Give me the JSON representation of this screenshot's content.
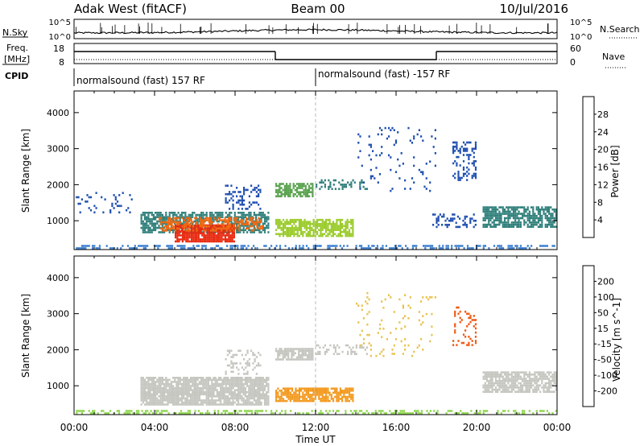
{
  "header": {
    "title_left": "Adak West (fitACF)",
    "title_center": "Beam 00",
    "title_right": "10/Jul/2016"
  },
  "noise_panel": {
    "left_label": "N.Sky",
    "right_label": "N.Search",
    "tick_top": "10^5",
    "tick_bottom": "10^0",
    "right_tick_top": "10^5",
    "right_tick_bottom": "10^0"
  },
  "freq_panel": {
    "left_label_1": "Freq.",
    "left_label_2": "[MHz]",
    "right_label": "Nave",
    "left_ticks": [
      "18",
      "8"
    ],
    "right_ticks": [
      "60",
      "0"
    ],
    "freq_segments": [
      {
        "from": 0.0,
        "to": 10.0,
        "level": 0.6
      },
      {
        "from": 10.0,
        "to": 18.0,
        "level": 0.2
      },
      {
        "from": 18.0,
        "to": 24.0,
        "level": 0.6
      }
    ]
  },
  "cpid_panel": {
    "label": "CPID",
    "segments": [
      {
        "start_hour": 0,
        "label": "normalsound (fast) 157 RF"
      },
      {
        "start_hour": 12,
        "label": "normalsound (fast) -157 RF"
      }
    ]
  },
  "chart_data": [
    {
      "type": "heatmap",
      "name": "power-panel",
      "ylabel": "Slant Range [km]",
      "xlim": [
        0,
        24
      ],
      "ylim": [
        200,
        4600
      ],
      "yticks": [
        1000,
        2000,
        3000,
        4000
      ],
      "colorbar": {
        "label": "Power [dB]",
        "ticks": [
          "4",
          "8",
          "12",
          "16",
          "20",
          "24",
          "28"
        ],
        "colors": [
          "#0a1fd6",
          "#1f4fb0",
          "#2f7f7a",
          "#5aa24f",
          "#9ccc2f",
          "#e7d21f",
          "#f0a41a",
          "#ee6a14",
          "#e82a10",
          "#e00000"
        ]
      },
      "regions": [
        {
          "name": "ground-scatter-bg",
          "t0": 0.0,
          "t1": 24.0,
          "r0": 200,
          "r1": 330,
          "color": "#3d7fd0",
          "density": 0.45
        },
        {
          "name": "dawn-echo-low",
          "t0": 3.3,
          "t1": 9.7,
          "r0": 650,
          "r1": 1250,
          "color": "#2f7f7a",
          "density": 0.7
        },
        {
          "name": "dawn-echo-core",
          "t0": 5.0,
          "t1": 8.0,
          "r0": 400,
          "r1": 900,
          "color": "#e82a10",
          "density": 0.9
        },
        {
          "name": "dawn-echo-mid",
          "t0": 4.2,
          "t1": 9.4,
          "r0": 700,
          "r1": 1100,
          "color": "#ee6a14",
          "density": 0.55
        },
        {
          "name": "dawn-echo-upper",
          "t0": 7.5,
          "t1": 9.3,
          "r0": 1300,
          "r1": 2000,
          "color": "#1f4fb0",
          "density": 0.35
        },
        {
          "name": "early-weak",
          "t0": 0.0,
          "t1": 3.0,
          "r0": 1200,
          "r1": 1800,
          "color": "#1f4fb0",
          "density": 0.12
        },
        {
          "name": "midday-upper",
          "t0": 10.0,
          "t1": 11.9,
          "r0": 1650,
          "r1": 2050,
          "color": "#5aa24f",
          "density": 0.75
        },
        {
          "name": "midday-lower",
          "t0": 10.0,
          "t1": 13.9,
          "r0": 550,
          "r1": 1050,
          "color": "#9ccc2f",
          "density": 0.75
        },
        {
          "name": "noon-tail",
          "t0": 12.0,
          "t1": 14.6,
          "r0": 1850,
          "r1": 2150,
          "color": "#2f7f7a",
          "density": 0.35
        },
        {
          "name": "afternoon-scatter",
          "t0": 14.0,
          "t1": 18.0,
          "r0": 1800,
          "r1": 3600,
          "color": "#1f4fb0",
          "density": 0.05
        },
        {
          "name": "evening-streak",
          "t0": 18.8,
          "t1": 20.0,
          "r0": 2100,
          "r1": 3200,
          "color": "#1f4fb0",
          "density": 0.3
        },
        {
          "name": "evening-low",
          "t0": 17.8,
          "t1": 20.0,
          "r0": 800,
          "r1": 1200,
          "color": "#1f4fb0",
          "density": 0.3
        },
        {
          "name": "night-band",
          "t0": 20.3,
          "t1": 24.0,
          "r0": 800,
          "r1": 1400,
          "color": "#2f7f7a",
          "density": 0.75
        }
      ]
    },
    {
      "type": "heatmap",
      "name": "velocity-panel",
      "ylabel": "Slant Range [km]",
      "xlabel": "Time UT",
      "xlim": [
        0,
        24
      ],
      "ylim": [
        200,
        4600
      ],
      "yticks": [
        1000,
        2000,
        3000,
        4000
      ],
      "xticks": [
        "00:00",
        "04:00",
        "08:00",
        "12:00",
        "16:00",
        "20:00",
        "00:00"
      ],
      "colorbar": {
        "label": "Velocity [m s^-1]",
        "ticks": [
          "200",
          "100",
          "50",
          "15",
          "-15",
          "-50",
          "-100",
          "-200"
        ],
        "colors": [
          "#1d3fc8",
          "#2f6f86",
          "#56b34a",
          "#8fd650",
          "#c6c6c0",
          "#e9c34f",
          "#f39a20",
          "#ee5a14",
          "#e81a10"
        ]
      },
      "regions": [
        {
          "name": "ground-scatter-bg",
          "t0": 0.0,
          "t1": 24.0,
          "r0": 200,
          "r1": 330,
          "color": "#8fd650",
          "density": 0.4
        },
        {
          "name": "dawn-echo",
          "t0": 3.3,
          "t1": 9.7,
          "r0": 450,
          "r1": 1250,
          "color": "#c6c6c0",
          "density": 0.85
        },
        {
          "name": "dawn-upper",
          "t0": 7.5,
          "t1": 9.3,
          "r0": 1300,
          "r1": 2000,
          "color": "#c6c6c0",
          "density": 0.3
        },
        {
          "name": "midday-upper",
          "t0": 10.0,
          "t1": 11.9,
          "r0": 1700,
          "r1": 2050,
          "color": "#c6c6c0",
          "density": 0.8
        },
        {
          "name": "noon-tail",
          "t0": 12.0,
          "t1": 14.6,
          "r0": 1850,
          "r1": 2150,
          "color": "#c6c6c0",
          "density": 0.35
        },
        {
          "name": "midday-lower",
          "t0": 10.0,
          "t1": 13.9,
          "r0": 550,
          "r1": 950,
          "color": "#f39a20",
          "density": 0.8
        },
        {
          "name": "afternoon-scatter",
          "t0": 14.0,
          "t1": 18.0,
          "r0": 1800,
          "r1": 3600,
          "color": "#e9c34f",
          "density": 0.05
        },
        {
          "name": "evening-streak",
          "t0": 18.8,
          "t1": 20.0,
          "r0": 2100,
          "r1": 3200,
          "color": "#ee5a14",
          "density": 0.2
        },
        {
          "name": "night-band",
          "t0": 20.3,
          "t1": 24.0,
          "r0": 800,
          "r1": 1400,
          "color": "#c6c6c0",
          "density": 0.8
        }
      ]
    }
  ]
}
